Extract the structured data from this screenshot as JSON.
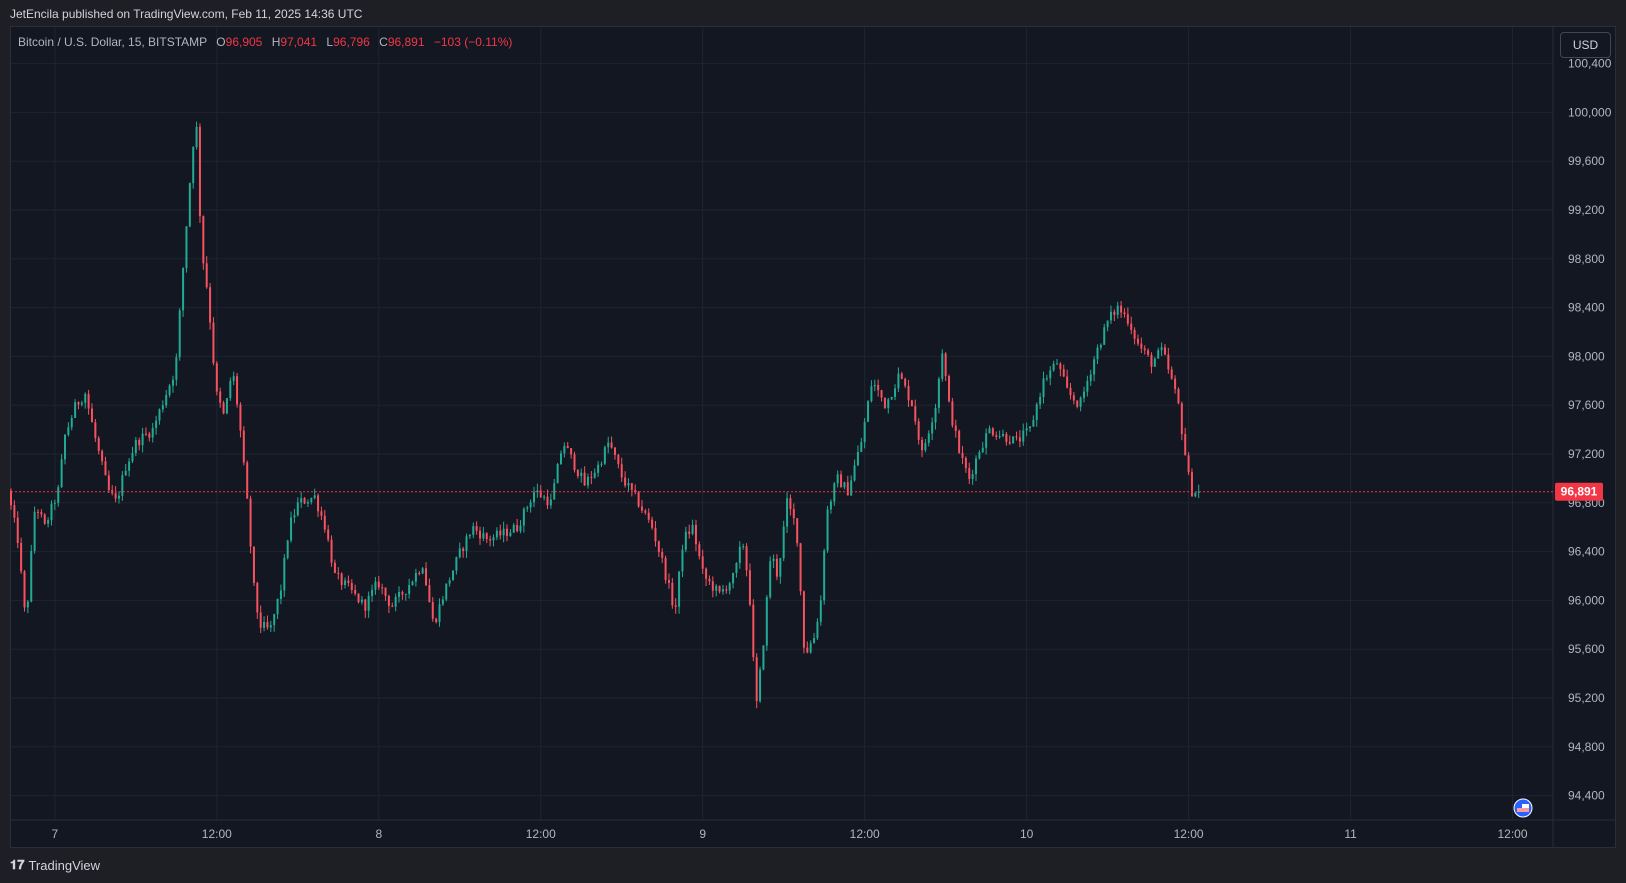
{
  "publisher": "JetEncila published on TradingView.com, Feb 11, 2025 14:36 UTC",
  "legend": {
    "symbol": "Bitcoin / U.S. Dollar, 15, BITSTAMP",
    "o_label": "O",
    "o_value": "96,905",
    "h_label": "H",
    "h_value": "97,041",
    "l_label": "L",
    "l_value": "96,796",
    "c_label": "C",
    "c_value": "96,891",
    "change": "−103 (−0.11%)"
  },
  "currency_button": "USD",
  "footer_brand": "TradingView",
  "colors": {
    "up": "#22ab94",
    "down": "#f7525f",
    "background": "#131722",
    "grid": "#1f2430",
    "last_price_line": "#f23645"
  },
  "chart_data": {
    "type": "candlestick",
    "ylim": [
      94200,
      100700
    ],
    "y_ticks": [
      "100,400",
      "100,000",
      "99,600",
      "99,200",
      "98,800",
      "98,400",
      "98,000",
      "97,600",
      "97,200",
      "96,800",
      "96,400",
      "96,000",
      "95,600",
      "95,200",
      "94,800",
      "94,400"
    ],
    "y_tick_values": [
      100400,
      100000,
      99600,
      99200,
      98800,
      98400,
      98000,
      97600,
      97200,
      96800,
      96400,
      96000,
      95600,
      95200,
      94800,
      94400
    ],
    "x_ticks": [
      "7",
      "12:00",
      "8",
      "12:00",
      "9",
      "12:00",
      "10",
      "12:00",
      "11",
      "12:00"
    ],
    "x_tick_hours": [
      24,
      36,
      48,
      60,
      72,
      84,
      96,
      108,
      120,
      132
    ],
    "x_range_hours": [
      20.75,
      135
    ],
    "last_price": 96891,
    "last_price_label": "96,891",
    "path_keypoints": [
      [
        20.75,
        96900
      ],
      [
        21.5,
        96500
      ],
      [
        22.1,
        95800
      ],
      [
        22.8,
        96800
      ],
      [
        23.5,
        96600
      ],
      [
        24.5,
        96900
      ],
      [
        25,
        97350
      ],
      [
        25.8,
        97600
      ],
      [
        26.5,
        97700
      ],
      [
        27.3,
        97300
      ],
      [
        28.2,
        96900
      ],
      [
        28.8,
        96800
      ],
      [
        29.5,
        97100
      ],
      [
        30.3,
        97300
      ],
      [
        31.5,
        97400
      ],
      [
        32.5,
        97700
      ],
      [
        33.2,
        97900
      ],
      [
        33.8,
        98800
      ],
      [
        34.3,
        99500
      ],
      [
        34.7,
        100000
      ],
      [
        35.1,
        98900
      ],
      [
        35.6,
        98500
      ],
      [
        36.2,
        97700
      ],
      [
        36.8,
        97500
      ],
      [
        37.4,
        97900
      ],
      [
        37.9,
        97500
      ],
      [
        38.5,
        96800
      ],
      [
        39.0,
        96100
      ],
      [
        39.4,
        95800
      ],
      [
        40.2,
        95750
      ],
      [
        41.0,
        96100
      ],
      [
        41.6,
        96600
      ],
      [
        42.3,
        96800
      ],
      [
        43.5,
        96850
      ],
      [
        44.3,
        96600
      ],
      [
        45.0,
        96200
      ],
      [
        46.0,
        96100
      ],
      [
        47.2,
        95950
      ],
      [
        48.2,
        96150
      ],
      [
        49.2,
        95950
      ],
      [
        50.3,
        96100
      ],
      [
        51.5,
        96300
      ],
      [
        52.3,
        95800
      ],
      [
        53.2,
        96100
      ],
      [
        54.3,
        96400
      ],
      [
        55.2,
        96600
      ],
      [
        56.3,
        96500
      ],
      [
        57.5,
        96550
      ],
      [
        58.5,
        96600
      ],
      [
        59.8,
        96900
      ],
      [
        61.0,
        96800
      ],
      [
        61.9,
        97300
      ],
      [
        62.8,
        97100
      ],
      [
        63.5,
        96950
      ],
      [
        64.5,
        97100
      ],
      [
        65.3,
        97300
      ],
      [
        66.3,
        97000
      ],
      [
        67.5,
        96800
      ],
      [
        68.5,
        96600
      ],
      [
        69.3,
        96300
      ],
      [
        70.2,
        95900
      ],
      [
        70.8,
        96500
      ],
      [
        71.5,
        96600
      ],
      [
        72.3,
        96200
      ],
      [
        73.5,
        96050
      ],
      [
        74.6,
        96200
      ],
      [
        75.2,
        96500
      ],
      [
        75.7,
        96100
      ],
      [
        76.2,
        95100
      ],
      [
        76.7,
        95600
      ],
      [
        77.3,
        96400
      ],
      [
        77.8,
        96200
      ],
      [
        78.5,
        96800
      ],
      [
        79.2,
        96600
      ],
      [
        79.8,
        95550
      ],
      [
        80.5,
        95700
      ],
      [
        81.0,
        96000
      ],
      [
        81.4,
        96700
      ],
      [
        82.2,
        97000
      ],
      [
        83.0,
        96900
      ],
      [
        84.0,
        97300
      ],
      [
        84.8,
        97800
      ],
      [
        85.8,
        97600
      ],
      [
        86.8,
        97850
      ],
      [
        87.8,
        97600
      ],
      [
        88.5,
        97200
      ],
      [
        89.5,
        97600
      ],
      [
        90.0,
        98050
      ],
      [
        90.5,
        97600
      ],
      [
        91.3,
        97200
      ],
      [
        92.0,
        97000
      ],
      [
        92.8,
        97250
      ],
      [
        93.5,
        97400
      ],
      [
        94.5,
        97350
      ],
      [
        95.5,
        97300
      ],
      [
        96.5,
        97400
      ],
      [
        97.5,
        97800
      ],
      [
        98.5,
        97950
      ],
      [
        99.3,
        97700
      ],
      [
        100.2,
        97600
      ],
      [
        101.3,
        98000
      ],
      [
        102.3,
        98300
      ],
      [
        103.0,
        98400
      ],
      [
        103.8,
        98300
      ],
      [
        104.5,
        98100
      ],
      [
        105.5,
        97950
      ],
      [
        106.3,
        98050
      ],
      [
        107.0,
        97800
      ],
      [
        107.5,
        97600
      ],
      [
        108.0,
        97200
      ],
      [
        108.4,
        96900
      ],
      [
        108.9,
        96891
      ]
    ]
  }
}
